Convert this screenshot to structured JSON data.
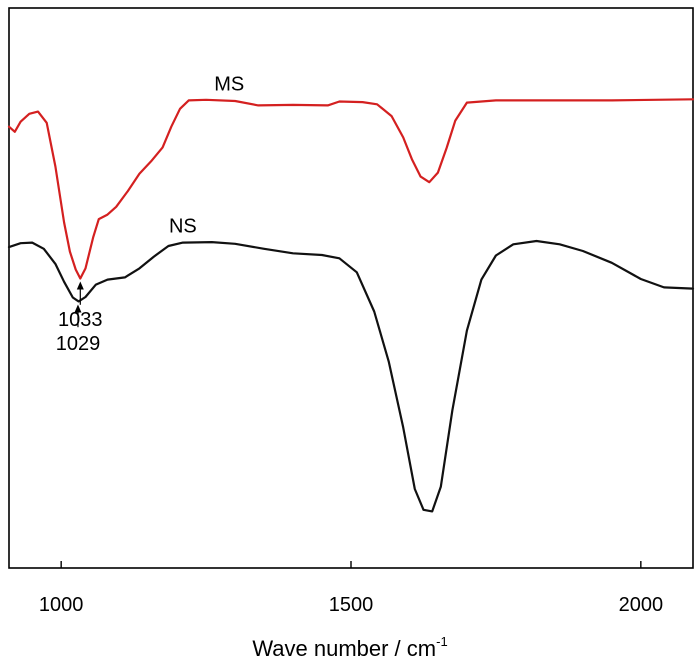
{
  "chart_data": {
    "type": "line",
    "title": "",
    "xlabel": "Wave number / cm",
    "xlabel_superscript": "-1",
    "ylabel": "",
    "xlim": [
      910,
      2090
    ],
    "ylim": [
      0,
      100
    ],
    "x_ticks": [
      1000,
      1500,
      2000
    ],
    "x_tick_labels": [
      "1000",
      "1500",
      "2000"
    ],
    "grid": false,
    "series": [
      {
        "name": "MS",
        "color": "#d42020",
        "points": [
          [
            910,
            78.8
          ],
          [
            920,
            77.9
          ],
          [
            930,
            79.7
          ],
          [
            945,
            81.1
          ],
          [
            960,
            81.5
          ],
          [
            975,
            79.5
          ],
          [
            990,
            71.7
          ],
          [
            1005,
            61.7
          ],
          [
            1015,
            56.5
          ],
          [
            1025,
            53.3
          ],
          [
            1033,
            51.7
          ],
          [
            1042,
            53.5
          ],
          [
            1055,
            59.0
          ],
          [
            1065,
            62.3
          ],
          [
            1080,
            63.1
          ],
          [
            1095,
            64.5
          ],
          [
            1115,
            67.3
          ],
          [
            1135,
            70.4
          ],
          [
            1155,
            72.6
          ],
          [
            1175,
            75.1
          ],
          [
            1190,
            78.8
          ],
          [
            1205,
            82.0
          ],
          [
            1220,
            83.5
          ],
          [
            1250,
            83.6
          ],
          [
            1300,
            83.4
          ],
          [
            1340,
            82.6
          ],
          [
            1400,
            82.7
          ],
          [
            1460,
            82.6
          ],
          [
            1480,
            83.3
          ],
          [
            1520,
            83.2
          ],
          [
            1545,
            82.8
          ],
          [
            1570,
            80.7
          ],
          [
            1590,
            76.9
          ],
          [
            1605,
            73.0
          ],
          [
            1620,
            69.9
          ],
          [
            1635,
            68.9
          ],
          [
            1650,
            70.6
          ],
          [
            1665,
            75.0
          ],
          [
            1680,
            79.9
          ],
          [
            1700,
            83.1
          ],
          [
            1750,
            83.5
          ],
          [
            1850,
            83.5
          ],
          [
            1950,
            83.5
          ],
          [
            2090,
            83.7
          ]
        ]
      },
      {
        "name": "NS",
        "color": "#111111",
        "points": [
          [
            910,
            57.3
          ],
          [
            930,
            58.0
          ],
          [
            950,
            58.1
          ],
          [
            970,
            57.0
          ],
          [
            990,
            54.3
          ],
          [
            1005,
            51.1
          ],
          [
            1020,
            48.3
          ],
          [
            1030,
            47.6
          ],
          [
            1042,
            48.4
          ],
          [
            1060,
            50.6
          ],
          [
            1080,
            51.5
          ],
          [
            1110,
            51.9
          ],
          [
            1135,
            53.5
          ],
          [
            1160,
            55.6
          ],
          [
            1185,
            57.5
          ],
          [
            1210,
            58.1
          ],
          [
            1260,
            58.2
          ],
          [
            1300,
            57.9
          ],
          [
            1350,
            57.0
          ],
          [
            1400,
            56.2
          ],
          [
            1450,
            55.9
          ],
          [
            1480,
            55.3
          ],
          [
            1510,
            52.8
          ],
          [
            1540,
            45.8
          ],
          [
            1565,
            36.9
          ],
          [
            1590,
            25.1
          ],
          [
            1610,
            14.1
          ],
          [
            1625,
            10.4
          ],
          [
            1640,
            10.1
          ],
          [
            1655,
            14.5
          ],
          [
            1675,
            28.2
          ],
          [
            1700,
            42.4
          ],
          [
            1725,
            51.5
          ],
          [
            1750,
            55.8
          ],
          [
            1780,
            57.8
          ],
          [
            1820,
            58.4
          ],
          [
            1860,
            57.8
          ],
          [
            1900,
            56.6
          ],
          [
            1950,
            54.5
          ],
          [
            2000,
            51.6
          ],
          [
            2040,
            50.1
          ],
          [
            2090,
            49.9
          ]
        ]
      }
    ],
    "series_labels": [
      {
        "text": "MS",
        "x": 1290,
        "y": 85.3
      },
      {
        "text": "NS",
        "x": 1210,
        "y": 59.9
      }
    ],
    "annotations": [
      {
        "text": "1033",
        "x": 1033,
        "y_point": 51.7,
        "y_tail": 47.0,
        "y_text": 43.2
      },
      {
        "text": "1029",
        "x": 1029,
        "y_point": 47.6,
        "y_tail": 43.0,
        "y_text": 38.9
      }
    ]
  }
}
